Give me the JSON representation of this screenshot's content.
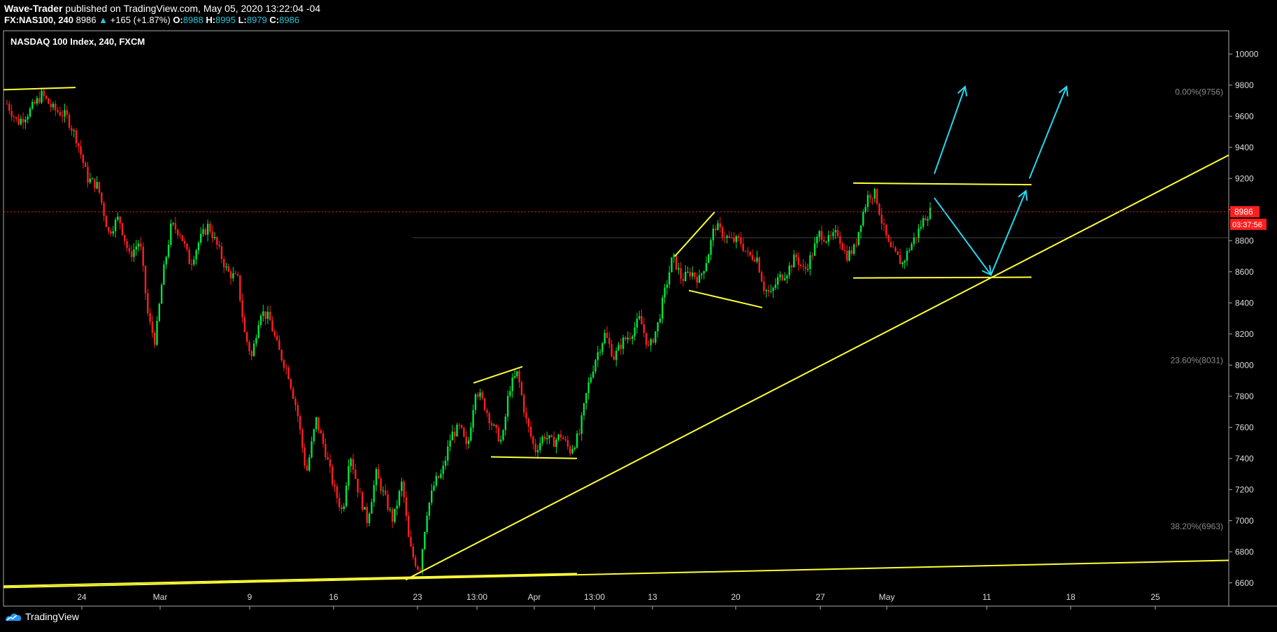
{
  "header": {
    "author": "Wave-Trader",
    "published": "published on TradingView.com, May 05, 2020 13:22:04 -04",
    "symbol": "FX:NAS100, 240",
    "last": "8986",
    "change_arrow": "▲",
    "change": "+165 (+1.87%)",
    "open_label": "O:",
    "open": "8988",
    "high_label": "H:",
    "high": "8995",
    "low_label": "L:",
    "low": "8979",
    "close_label": "C:",
    "close": "8986"
  },
  "footer": {
    "brand": "TradingView",
    "logo_icon": "tradingview-logo-icon"
  },
  "colors": {
    "up": "#00e640",
    "down": "#ff1f1f",
    "trendline": "#ffff3a",
    "arrow": "#26d9f0",
    "price_tag": "#ff1f1f"
  },
  "chart_data": {
    "type": "candlestick",
    "title": "NASDAQ 100 Index, 240, FXCM",
    "ylim": [
      6500,
      10100
    ],
    "y_ticks": [
      6600,
      6800,
      7000,
      7200,
      7400,
      7600,
      7800,
      8000,
      8200,
      8400,
      8600,
      8800,
      9000,
      9200,
      9400,
      9600,
      9800,
      10000
    ],
    "x_ticks": [
      {
        "label": "24",
        "x": 117
      },
      {
        "label": "Mar",
        "x": 229
      },
      {
        "label": "9",
        "x": 357
      },
      {
        "label": "16",
        "x": 477
      },
      {
        "label": "23",
        "x": 597
      },
      {
        "label": "13:00",
        "x": 682
      },
      {
        "label": "Apr",
        "x": 764
      },
      {
        "label": "13:00",
        "x": 850
      },
      {
        "label": "13",
        "x": 933
      },
      {
        "label": "20",
        "x": 1052
      },
      {
        "label": "27",
        "x": 1173
      },
      {
        "label": "May",
        "x": 1268
      },
      {
        "label": "11",
        "x": 1411
      },
      {
        "label": "18",
        "x": 1531
      },
      {
        "label": "25",
        "x": 1652
      }
    ],
    "current_price": "8986",
    "countdown": "03:37:56",
    "fib_levels": [
      {
        "label": "0.00%(9756)",
        "value": 9756
      },
      {
        "label": "23.60%(8031)",
        "value": 8031
      },
      {
        "label": "38.20%(6963)",
        "value": 6963
      }
    ],
    "price_path": [
      [
        10,
        9680
      ],
      [
        25,
        9560
      ],
      [
        40,
        9620
      ],
      [
        60,
        9740
      ],
      [
        75,
        9650
      ],
      [
        95,
        9600
      ],
      [
        110,
        9450
      ],
      [
        125,
        9200
      ],
      [
        140,
        9150
      ],
      [
        155,
        8850
      ],
      [
        170,
        8950
      ],
      [
        185,
        8700
      ],
      [
        200,
        8800
      ],
      [
        212,
        8300
      ],
      [
        222,
        8150
      ],
      [
        232,
        8550
      ],
      [
        245,
        8900
      ],
      [
        258,
        8850
      ],
      [
        272,
        8650
      ],
      [
        285,
        8800
      ],
      [
        298,
        8900
      ],
      [
        312,
        8750
      ],
      [
        325,
        8600
      ],
      [
        340,
        8550
      ],
      [
        350,
        8200
      ],
      [
        360,
        8050
      ],
      [
        372,
        8350
      ],
      [
        385,
        8300
      ],
      [
        398,
        8100
      ],
      [
        412,
        7950
      ],
      [
        425,
        7700
      ],
      [
        438,
        7300
      ],
      [
        452,
        7650
      ],
      [
        465,
        7450
      ],
      [
        478,
        7200
      ],
      [
        490,
        7050
      ],
      [
        500,
        7450
      ],
      [
        512,
        7200
      ],
      [
        525,
        7000
      ],
      [
        538,
        7300
      ],
      [
        550,
        7150
      ],
      [
        562,
        7000
      ],
      [
        575,
        7250
      ],
      [
        585,
        6850
      ],
      [
        592,
        6750
      ],
      [
        600,
        6680
      ],
      [
        610,
        7050
      ],
      [
        622,
        7250
      ],
      [
        632,
        7300
      ],
      [
        645,
        7550
      ],
      [
        658,
        7600
      ],
      [
        668,
        7450
      ],
      [
        680,
        7850
      ],
      [
        692,
        7750
      ],
      [
        705,
        7600
      ],
      [
        718,
        7500
      ],
      [
        728,
        7850
      ],
      [
        740,
        7950
      ],
      [
        752,
        7650
      ],
      [
        765,
        7450
      ],
      [
        778,
        7550
      ],
      [
        790,
        7500
      ],
      [
        802,
        7550
      ],
      [
        815,
        7450
      ],
      [
        828,
        7550
      ],
      [
        840,
        7850
      ],
      [
        852,
        8050
      ],
      [
        865,
        8200
      ],
      [
        878,
        8050
      ],
      [
        890,
        8150
      ],
      [
        902,
        8200
      ],
      [
        915,
        8300
      ],
      [
        928,
        8100
      ],
      [
        940,
        8250
      ],
      [
        952,
        8500
      ],
      [
        962,
        8700
      ],
      [
        975,
        8550
      ],
      [
        988,
        8600
      ],
      [
        1000,
        8550
      ],
      [
        1012,
        8700
      ],
      [
        1022,
        8900
      ],
      [
        1032,
        8850
      ],
      [
        1045,
        8800
      ],
      [
        1058,
        8800
      ],
      [
        1070,
        8700
      ],
      [
        1082,
        8700
      ],
      [
        1092,
        8500
      ],
      [
        1102,
        8450
      ],
      [
        1112,
        8550
      ],
      [
        1125,
        8600
      ],
      [
        1138,
        8700
      ],
      [
        1150,
        8600
      ],
      [
        1160,
        8700
      ],
      [
        1172,
        8850
      ],
      [
        1185,
        8800
      ],
      [
        1198,
        8850
      ],
      [
        1210,
        8700
      ],
      [
        1222,
        8750
      ],
      [
        1232,
        8950
      ],
      [
        1242,
        9100
      ],
      [
        1252,
        9100
      ],
      [
        1262,
        8900
      ],
      [
        1272,
        8750
      ],
      [
        1282,
        8700
      ],
      [
        1290,
        8650
      ],
      [
        1300,
        8750
      ],
      [
        1312,
        8850
      ],
      [
        1322,
        8950
      ],
      [
        1330,
        8986
      ]
    ],
    "trendlines": [
      {
        "x1": 5,
        "y1": 9770,
        "x2": 108,
        "y2": 9785
      },
      {
        "x1": 5,
        "y1": 6580,
        "x2": 825,
        "y2": 6660
      },
      {
        "x1": 5,
        "y1": 6570,
        "x2": 1757,
        "y2": 6745
      },
      {
        "x1": 580,
        "y1": 6620,
        "x2": 1757,
        "y2": 9350
      },
      {
        "x1": 677,
        "y1": 7885,
        "x2": 747,
        "y2": 7990
      },
      {
        "x1": 702,
        "y1": 7410,
        "x2": 825,
        "y2": 7400
      },
      {
        "x1": 965,
        "y1": 8700,
        "x2": 1022,
        "y2": 8985
      },
      {
        "x1": 985,
        "y1": 8480,
        "x2": 1090,
        "y2": 8370
      },
      {
        "x1": 1220,
        "y1": 9170,
        "x2": 1475,
        "y2": 9160
      },
      {
        "x1": 1220,
        "y1": 8560,
        "x2": 1475,
        "y2": 8565
      }
    ],
    "arrows": [
      {
        "x1": 1336,
        "y1": 9230,
        "x2": 1380,
        "y2": 9790
      },
      {
        "x1": 1336,
        "y1": 9075,
        "x2": 1417,
        "y2": 8580
      },
      {
        "x1": 1417,
        "y1": 8580,
        "x2": 1467,
        "y2": 9120
      },
      {
        "x1": 1472,
        "y1": 9200,
        "x2": 1525,
        "y2": 9790
      }
    ]
  }
}
